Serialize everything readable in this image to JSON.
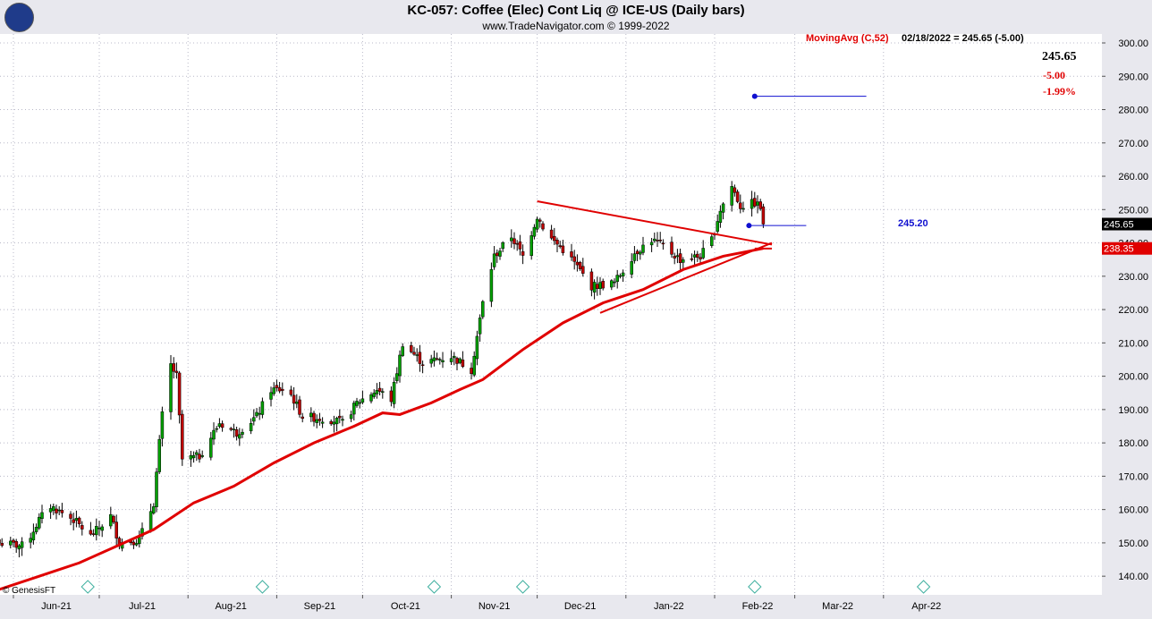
{
  "header": {
    "title": "KC-057:  Coffee (Elec) Cont Liq @ ICE-US  (Daily bars)",
    "subtitle": "www.TradeNavigator.com © 1999-2022"
  },
  "legend": {
    "ma_label": "MovingAvg (C,52)",
    "ma_info": "02/18/2022 = 245.65 (-5.00)"
  },
  "quote": {
    "last": "245.65",
    "change": "-5.00",
    "change_pct": "-1.99%"
  },
  "marker_label": "245.20",
  "copyright": "© GenesisFT",
  "colors": {
    "up": "#00a000",
    "down": "#c00000",
    "ma": "#e00000",
    "marker": "#1010d0",
    "trendline": "#e00000"
  },
  "chart_data": {
    "type": "candlestick",
    "x_axis_labels": [
      "Jun-21",
      "Jul-21",
      "Aug-21",
      "Sep-21",
      "Oct-21",
      "Nov-21",
      "Dec-21",
      "Jan-22",
      "Feb-22",
      "Mar-22",
      "Apr-22"
    ],
    "y_tick_labels": [
      "300.00",
      "290.00",
      "280.00",
      "270.00",
      "260.00",
      "250.00",
      "240.00",
      "230.00",
      "220.00",
      "210.00",
      "200.00",
      "190.00",
      "180.00",
      "170.00",
      "160.00",
      "150.00",
      "140.00"
    ],
    "ylim": [
      135,
      301
    ],
    "price_tags": [
      {
        "label": "245.65",
        "value": 245.65,
        "bg": "#000000",
        "fg": "#ffffff"
      },
      {
        "label": "238.35",
        "value": 238.35,
        "bg": "#e00000",
        "fg": "#ffffff"
      }
    ],
    "close_anchors": [
      [
        "2021-05-27",
        150
      ],
      [
        "2021-06-05",
        149
      ],
      [
        "2021-06-10",
        157
      ],
      [
        "2021-06-14",
        161
      ],
      [
        "2021-06-22",
        157
      ],
      [
        "2021-06-28",
        152
      ],
      [
        "2021-07-05",
        158
      ],
      [
        "2021-07-08",
        150
      ],
      [
        "2021-07-15",
        151
      ],
      [
        "2021-07-20",
        162
      ],
      [
        "2021-07-22",
        180
      ],
      [
        "2021-07-25",
        205
      ],
      [
        "2021-07-28",
        200
      ],
      [
        "2021-07-30",
        175
      ],
      [
        "2021-08-05",
        176
      ],
      [
        "2021-08-12",
        186
      ],
      [
        "2021-08-18",
        183
      ],
      [
        "2021-08-25",
        188
      ],
      [
        "2021-08-30",
        196
      ],
      [
        "2021-09-05",
        196
      ],
      [
        "2021-09-10",
        188
      ],
      [
        "2021-09-20",
        187
      ],
      [
        "2021-09-24",
        186
      ],
      [
        "2021-09-29",
        192
      ],
      [
        "2021-10-06",
        196
      ],
      [
        "2021-10-11",
        193
      ],
      [
        "2021-10-15",
        210
      ],
      [
        "2021-10-22",
        204
      ],
      [
        "2021-11-01",
        206
      ],
      [
        "2021-11-08",
        202
      ],
      [
        "2021-11-12",
        222
      ],
      [
        "2021-11-16",
        236
      ],
      [
        "2021-11-22",
        242
      ],
      [
        "2021-11-26",
        236
      ],
      [
        "2021-12-01",
        248
      ],
      [
        "2021-12-05",
        242
      ],
      [
        "2021-12-10",
        238
      ],
      [
        "2021-12-14",
        234
      ],
      [
        "2021-12-20",
        227
      ],
      [
        "2021-12-28",
        228
      ],
      [
        "2022-01-04",
        237
      ],
      [
        "2022-01-10",
        241
      ],
      [
        "2022-01-14",
        239
      ],
      [
        "2022-01-20",
        235
      ],
      [
        "2022-01-27",
        236
      ],
      [
        "2022-01-31",
        241
      ],
      [
        "2022-02-03",
        250
      ],
      [
        "2022-02-07",
        257
      ],
      [
        "2022-02-10",
        251
      ],
      [
        "2022-02-15",
        252
      ],
      [
        "2022-02-17",
        250.65
      ],
      [
        "2022-02-18",
        245.65
      ]
    ],
    "moving_average": {
      "name": "MovingAvg (C,52)",
      "points": [
        [
          "2021-05-27",
          136
        ],
        [
          "2021-06-10",
          140
        ],
        [
          "2021-06-24",
          144
        ],
        [
          "2021-07-07",
          149
        ],
        [
          "2021-07-20",
          154
        ],
        [
          "2021-08-03",
          162
        ],
        [
          "2021-08-17",
          167
        ],
        [
          "2021-08-31",
          174
        ],
        [
          "2021-09-14",
          180
        ],
        [
          "2021-09-28",
          185
        ],
        [
          "2021-10-08",
          189
        ],
        [
          "2021-10-14",
          188.5
        ],
        [
          "2021-10-25",
          192
        ],
        [
          "2021-11-04",
          196
        ],
        [
          "2021-11-12",
          199
        ],
        [
          "2021-11-26",
          208
        ],
        [
          "2021-12-10",
          216
        ],
        [
          "2021-12-24",
          222
        ],
        [
          "2022-01-07",
          226
        ],
        [
          "2022-01-21",
          232
        ],
        [
          "2022-02-04",
          236
        ],
        [
          "2022-02-18",
          238.35
        ]
      ]
    },
    "triangle_upper": [
      [
        "2021-12-01",
        252.5
      ],
      [
        "2022-02-21",
        239.5
      ]
    ],
    "triangle_lower": [
      [
        "2021-12-23",
        219
      ],
      [
        "2022-02-21",
        240
      ]
    ],
    "triangle_base": [
      [
        "2022-02-15",
        238.3
      ],
      [
        "2022-02-21",
        238.3
      ]
    ],
    "target_line": {
      "from": "2022-02-15",
      "to": "2022-03-26",
      "value": 284
    },
    "marker_line": {
      "from": "2022-02-13",
      "to": "2022-03-05",
      "value": 245.2
    },
    "last_date": "2022-02-18"
  }
}
